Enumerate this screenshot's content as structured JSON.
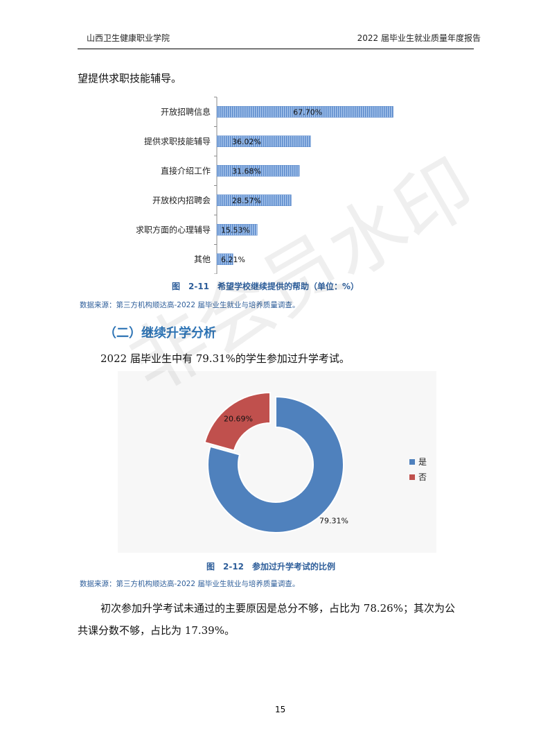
{
  "header": {
    "left": "山西卫生健康职业学院",
    "right": "2022 届毕业生就业质量年度报告"
  },
  "intro_line": "望提供求职技能辅导。",
  "chart1_caption": "图　2-11　希望学校继续提供的帮助（单位：%）",
  "source1": "数据来源：第三方机构顺达高-2022 届毕业生就业与培养质量调查。",
  "section_title": "（二）继续升学分析",
  "para_exam": "2022 届毕业生中有 79.31%的学生参加过升学考试。",
  "chart2_caption": "图　2-12　参加过升学考试的比例",
  "source2": "数据来源：第三方机构顺达高-2022 届毕业生就业与培养质量调查。",
  "para_reason_1": "初次参加升学考试未通过的主要原因是总分不够，占比为 78.26%；其次为公",
  "para_reason_2": "共课分数不够，占比为 17.39%。",
  "page_number": "15",
  "watermark": "非会员水印",
  "colors": {
    "bar": "#6E9BD1",
    "donut_yes": "#4F81BD",
    "donut_no": "#C0504D",
    "caption": "#2E5E9A"
  },
  "chart_data": [
    {
      "type": "bar",
      "orientation": "horizontal",
      "categories": [
        "开放招聘信息",
        "提供求职技能辅导",
        "直接介绍工作",
        "开放校内招聘会",
        "求职方面的心理辅导",
        "其他"
      ],
      "values": [
        67.7,
        36.02,
        31.68,
        28.57,
        15.53,
        6.21
      ],
      "value_labels": [
        "67.70%",
        "36.02%",
        "31.68%",
        "28.57%",
        "15.53%",
        "6.21%"
      ],
      "title": "",
      "xlim": [
        0,
        100
      ]
    },
    {
      "type": "pie",
      "variant": "donut",
      "categories": [
        "是",
        "否"
      ],
      "values": [
        79.31,
        20.69
      ],
      "value_labels": [
        "79.31%",
        "20.69%"
      ],
      "legend_placement": "right",
      "title": ""
    }
  ]
}
